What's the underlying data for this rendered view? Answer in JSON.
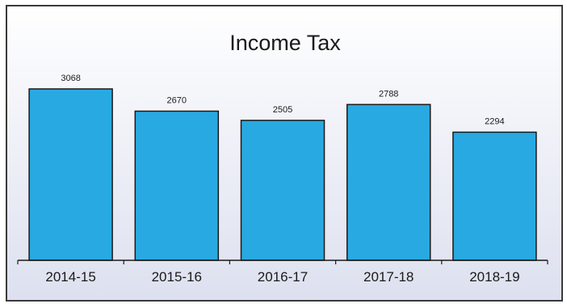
{
  "chart_data": {
    "type": "bar",
    "title": "Income Tax",
    "xlabel": "",
    "ylabel": "",
    "categories": [
      "2014-15",
      "2015-16",
      "2016-17",
      "2017-18",
      "2018-19"
    ],
    "values": [
      3068,
      2670,
      2505,
      2788,
      2294
    ],
    "value_labels": [
      "3068",
      "2670",
      "2505",
      "2788",
      "2294"
    ],
    "ylim": [
      0,
      3500
    ],
    "grid": false,
    "legend": "none",
    "colors": {
      "bar_fill": "#29a9e1",
      "bar_stroke": "#1a1a1a",
      "background_top": "#ffffff",
      "background_bottom": "#dde0ef",
      "frame": "#3a3a3a",
      "text": "#1a1a1a"
    }
  }
}
